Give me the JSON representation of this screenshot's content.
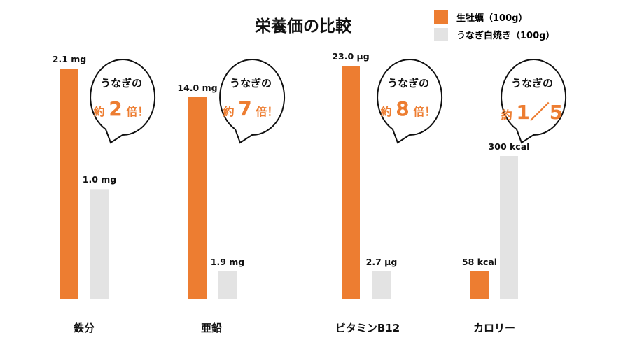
{
  "chart_data": {
    "type": "bar",
    "title": "栄養価の比較",
    "categories": [
      "鉄分",
      "亜鉛",
      "ビタミンB12",
      "カロリー"
    ],
    "series": [
      {
        "name": "生牡蠣（100g）",
        "color": "#ed7d31",
        "values": [
          2.1,
          14.0,
          23.0,
          58
        ],
        "labels": [
          "2.1 mg",
          "14.0 mg",
          "23.0 μg",
          "58 kcal"
        ]
      },
      {
        "name": "うなぎ白焼き（100g）",
        "color": "#e3e3e3",
        "values": [
          1.0,
          1.9,
          2.7,
          300
        ],
        "labels": [
          "1.0 mg",
          "1.9 mg",
          "2.7 μg",
          "300 kcal"
        ]
      }
    ],
    "legend": "top-right",
    "annotations": [
      {
        "line1": "うなぎの",
        "pre": "約",
        "num": "2",
        "post": "倍！"
      },
      {
        "line1": "うなぎの",
        "pre": "約",
        "num": "7",
        "post": "倍！"
      },
      {
        "line1": "うなぎの",
        "pre": "約",
        "num": "8",
        "post": "倍！"
      },
      {
        "line1": "うなぎの",
        "pre": "約",
        "num": "1／5",
        "post": ""
      }
    ]
  }
}
